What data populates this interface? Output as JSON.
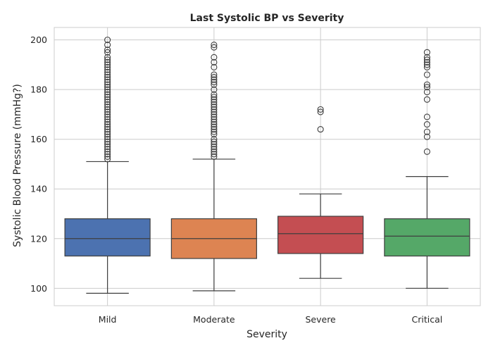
{
  "chart_data": {
    "type": "box",
    "title": "Last Systolic BP vs Severity",
    "xlabel": "Severity",
    "ylabel": "Systolic Blood Pressure (mmHg?)",
    "ylim": [
      93,
      205
    ],
    "yticks": [
      100,
      120,
      140,
      160,
      180,
      200
    ],
    "grid": true,
    "categories": [
      "Mild",
      "Moderate",
      "Severe",
      "Critical"
    ],
    "colors": {
      "Mild": "#4c72b0",
      "Moderate": "#dd8452",
      "Severe": "#c44e52",
      "Critical": "#55a868"
    },
    "boxes": [
      {
        "category": "Mild",
        "whisker_low": 98,
        "q1": 113,
        "median": 120,
        "q3": 128,
        "whisker_high": 151,
        "outliers": [
          152,
          153,
          154,
          155,
          156,
          157,
          158,
          159,
          160,
          161,
          162,
          163,
          164,
          165,
          166,
          167,
          168,
          169,
          170,
          171,
          172,
          173,
          174,
          175,
          176,
          177,
          178,
          179,
          180,
          181,
          182,
          183,
          184,
          185,
          186,
          187,
          188,
          189,
          190,
          191,
          192,
          193,
          195,
          196,
          198,
          200
        ]
      },
      {
        "category": "Moderate",
        "whisker_low": 99,
        "q1": 112,
        "median": 120,
        "q3": 128,
        "whisker_high": 152,
        "outliers": [
          153,
          154,
          155,
          156,
          157,
          158,
          159,
          160,
          162,
          163,
          164,
          165,
          166,
          167,
          168,
          169,
          170,
          171,
          172,
          173,
          174,
          175,
          176,
          177,
          178,
          180,
          182,
          183,
          184,
          185,
          186,
          189,
          191,
          193,
          197,
          198
        ]
      },
      {
        "category": "Severe",
        "whisker_low": 104,
        "q1": 114,
        "median": 122,
        "q3": 129,
        "whisker_high": 138,
        "outliers": [
          164,
          171,
          172
        ]
      },
      {
        "category": "Critical",
        "whisker_low": 100,
        "q1": 113,
        "median": 121,
        "q3": 128,
        "whisker_high": 145,
        "outliers": [
          155,
          161,
          163,
          166,
          169,
          176,
          179,
          181,
          182,
          186,
          189,
          190,
          191,
          192,
          193,
          195
        ]
      }
    ]
  }
}
